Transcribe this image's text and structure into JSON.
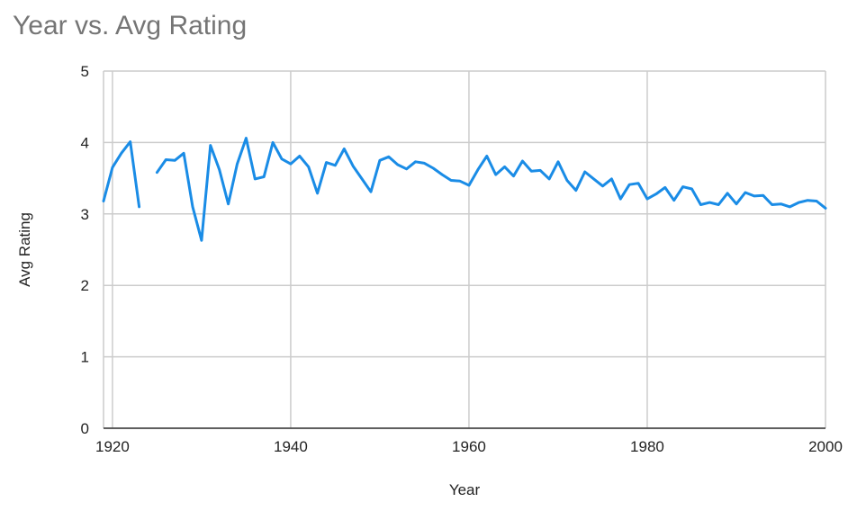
{
  "chart_data": {
    "type": "line",
    "title": "Year vs. Avg Rating",
    "xlabel": "Year",
    "ylabel": "Avg Rating",
    "xlim": [
      1919,
      2000
    ],
    "ylim": [
      0,
      5
    ],
    "x_ticks": [
      "1920",
      "1940",
      "1960",
      "1980",
      "2000"
    ],
    "y_ticks": [
      "0",
      "1",
      "2",
      "3",
      "4",
      "5"
    ],
    "grid": true,
    "legend": "none",
    "colors": {
      "line": "#1a8ce6",
      "grid": "#cccccc",
      "axis": "#333333"
    },
    "series": [
      {
        "points": [
          [
            1919,
            3.18
          ],
          [
            1920,
            3.65
          ],
          [
            1921,
            3.85
          ],
          [
            1922,
            4.01
          ],
          [
            1923,
            3.1
          ],
          [
            1925,
            3.58
          ],
          [
            1926,
            3.76
          ],
          [
            1927,
            3.75
          ],
          [
            1928,
            3.85
          ],
          [
            1929,
            3.1
          ],
          [
            1930,
            2.63
          ],
          [
            1931,
            3.96
          ],
          [
            1932,
            3.62
          ],
          [
            1933,
            3.14
          ],
          [
            1934,
            3.7
          ],
          [
            1935,
            4.06
          ],
          [
            1936,
            3.49
          ],
          [
            1937,
            3.52
          ],
          [
            1938,
            4.0
          ],
          [
            1939,
            3.77
          ],
          [
            1940,
            3.7
          ],
          [
            1941,
            3.81
          ],
          [
            1942,
            3.66
          ],
          [
            1943,
            3.29
          ],
          [
            1944,
            3.72
          ],
          [
            1945,
            3.68
          ],
          [
            1946,
            3.91
          ],
          [
            1947,
            3.67
          ],
          [
            1948,
            3.49
          ],
          [
            1949,
            3.31
          ],
          [
            1950,
            3.75
          ],
          [
            1951,
            3.8
          ],
          [
            1952,
            3.69
          ],
          [
            1953,
            3.63
          ],
          [
            1954,
            3.73
          ],
          [
            1955,
            3.71
          ],
          [
            1956,
            3.64
          ],
          [
            1957,
            3.55
          ],
          [
            1958,
            3.47
          ],
          [
            1959,
            3.46
          ],
          [
            1960,
            3.4
          ],
          [
            1961,
            3.62
          ],
          [
            1962,
            3.81
          ],
          [
            1963,
            3.55
          ],
          [
            1964,
            3.66
          ],
          [
            1965,
            3.53
          ],
          [
            1966,
            3.74
          ],
          [
            1967,
            3.6
          ],
          [
            1968,
            3.61
          ],
          [
            1969,
            3.49
          ],
          [
            1970,
            3.73
          ],
          [
            1971,
            3.47
          ],
          [
            1972,
            3.33
          ],
          [
            1973,
            3.59
          ],
          [
            1974,
            3.49
          ],
          [
            1975,
            3.39
          ],
          [
            1976,
            3.49
          ],
          [
            1977,
            3.21
          ],
          [
            1978,
            3.41
          ],
          [
            1979,
            3.43
          ],
          [
            1980,
            3.21
          ],
          [
            1981,
            3.28
          ],
          [
            1982,
            3.37
          ],
          [
            1983,
            3.19
          ],
          [
            1984,
            3.38
          ],
          [
            1985,
            3.35
          ],
          [
            1986,
            3.13
          ],
          [
            1987,
            3.16
          ],
          [
            1988,
            3.13
          ],
          [
            1989,
            3.29
          ],
          [
            1990,
            3.14
          ],
          [
            1991,
            3.3
          ],
          [
            1992,
            3.25
          ],
          [
            1993,
            3.26
          ],
          [
            1994,
            3.13
          ],
          [
            1995,
            3.14
          ],
          [
            1996,
            3.1
          ],
          [
            1997,
            3.16
          ],
          [
            1998,
            3.19
          ],
          [
            1999,
            3.18
          ],
          [
            2000,
            3.08
          ]
        ]
      }
    ]
  }
}
